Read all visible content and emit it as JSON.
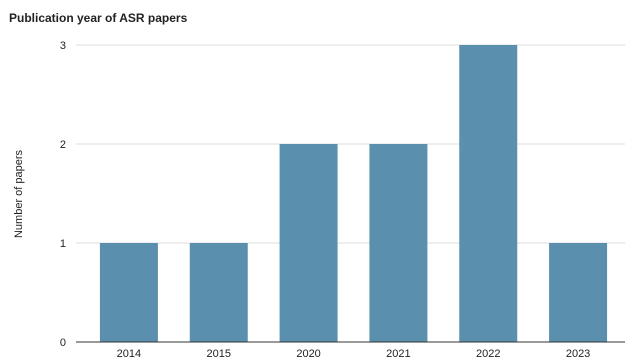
{
  "chart_data": {
    "type": "bar",
    "title": "Publication year of ASR papers",
    "xlabel": "",
    "ylabel": "Number of papers",
    "categories": [
      "2014",
      "2015",
      "2020",
      "2021",
      "2022",
      "2023"
    ],
    "values": [
      1,
      1,
      2,
      2,
      3,
      1
    ],
    "ylim": [
      0,
      3
    ],
    "yticks": [
      "0",
      "1",
      "2",
      "3"
    ],
    "grid": true,
    "legend": "none",
    "bar_color": "#5a8fad"
  }
}
